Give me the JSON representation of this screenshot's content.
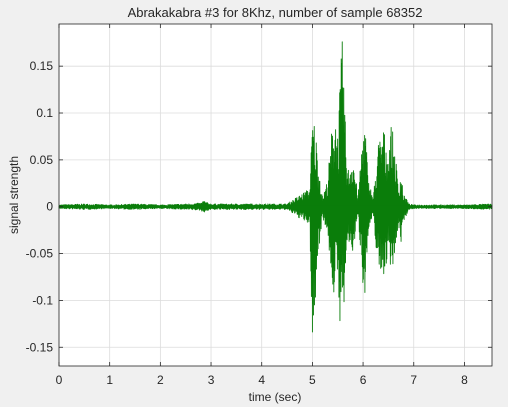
{
  "chart_data": {
    "type": "line",
    "title": "Abrakakabra #3 for 8Khz, number of sample 68352",
    "xlabel": "time (sec)",
    "ylabel": "signal strength",
    "xlim": [
      0,
      8.544
    ],
    "ylim": [
      -0.17,
      0.195
    ],
    "x_ticks": [
      0,
      1,
      2,
      3,
      4,
      5,
      6,
      7,
      8
    ],
    "x_tick_labels": [
      "0",
      "1",
      "2",
      "3",
      "4",
      "5",
      "6",
      "7",
      "8"
    ],
    "y_ticks": [
      -0.15,
      -0.1,
      -0.05,
      0,
      0.05,
      0.1,
      0.15
    ],
    "y_tick_labels": [
      "-0.15",
      "-0.1",
      "-0.05",
      "0",
      "0.05",
      "0.1",
      "0.15"
    ],
    "grid": true,
    "series": [
      {
        "color": "#0a7d0a",
        "envelope": {
          "x": [
            0,
            0.5,
            1.0,
            1.5,
            2.0,
            2.5,
            2.8,
            2.85,
            2.9,
            3.0,
            3.5,
            4.0,
            4.5,
            4.95,
            5.0,
            5.05,
            5.1,
            5.2,
            5.3,
            5.4,
            5.45,
            5.5,
            5.55,
            5.6,
            5.65,
            5.7,
            5.8,
            5.9,
            6.0,
            6.05,
            6.1,
            6.2,
            6.3,
            6.4,
            6.5,
            6.55,
            6.6,
            6.65,
            6.7,
            6.75,
            6.8,
            6.85,
            6.9,
            7.0,
            7.5,
            8.0,
            8.544
          ],
          "upper": [
            0.002,
            0.003,
            0.002,
            0.003,
            0.002,
            0.003,
            0.004,
            0.007,
            0.005,
            0.003,
            0.003,
            0.003,
            0.003,
            0.02,
            0.1,
            0.09,
            0.06,
            0.01,
            0.03,
            0.095,
            0.11,
            0.08,
            0.14,
            0.19,
            0.09,
            0.04,
            0.06,
            0.01,
            0.09,
            0.085,
            0.03,
            0.01,
            0.07,
            0.085,
            0.06,
            0.09,
            0.075,
            0.05,
            0.02,
            0.04,
            0.012,
            0.01,
            0.003,
            0.002,
            0.002,
            0.002,
            0.003
          ],
          "lower": [
            -0.002,
            -0.003,
            -0.002,
            -0.003,
            -0.002,
            -0.003,
            -0.004,
            -0.006,
            -0.005,
            -0.003,
            -0.003,
            -0.003,
            -0.003,
            -0.02,
            -0.16,
            -0.12,
            -0.06,
            -0.01,
            -0.03,
            -0.09,
            -0.1,
            -0.08,
            -0.13,
            -0.14,
            -0.08,
            -0.04,
            -0.05,
            -0.01,
            -0.085,
            -0.095,
            -0.03,
            -0.01,
            -0.07,
            -0.075,
            -0.055,
            -0.065,
            -0.06,
            -0.05,
            -0.02,
            -0.04,
            -0.015,
            -0.01,
            -0.003,
            -0.002,
            -0.002,
            -0.002,
            -0.003
          ]
        }
      }
    ]
  }
}
